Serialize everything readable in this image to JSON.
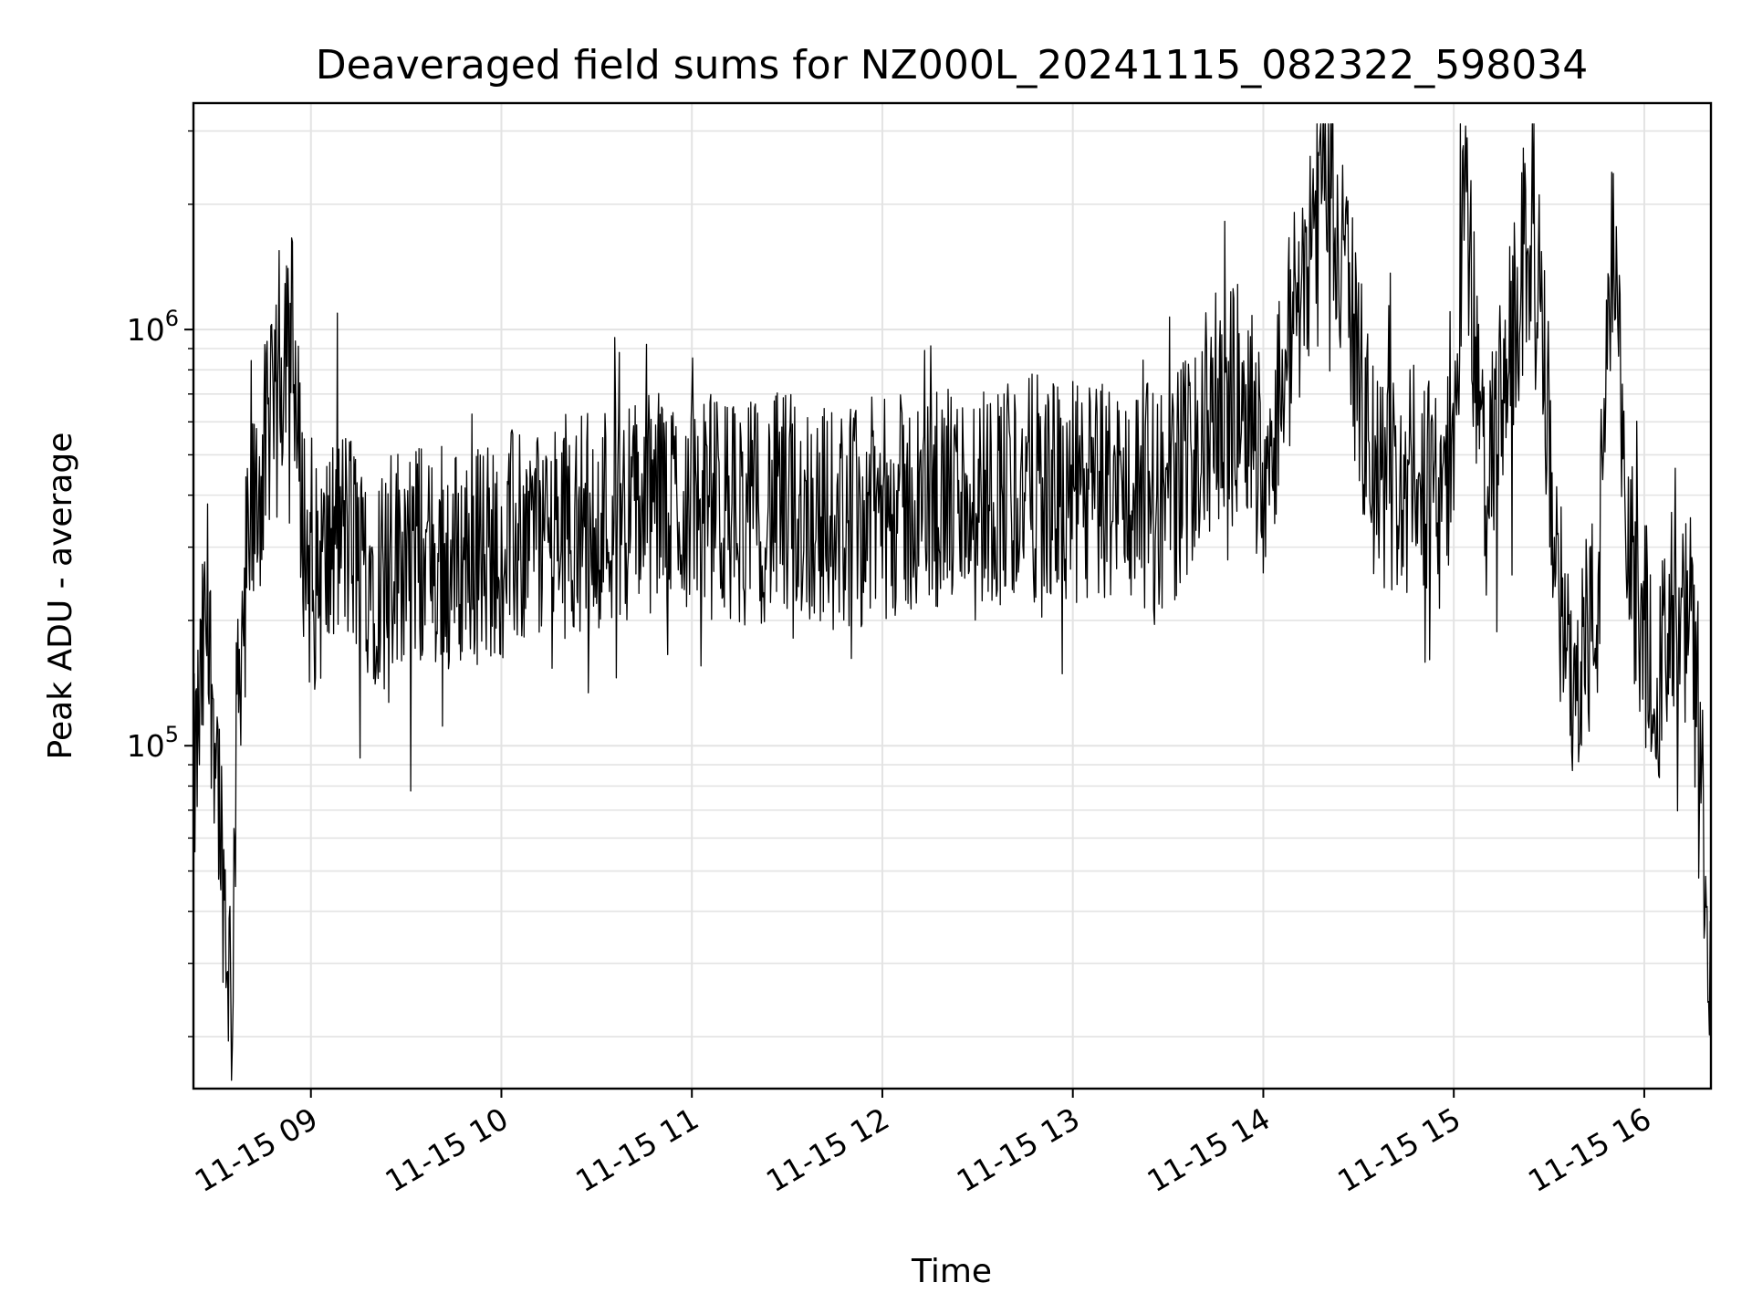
{
  "chart_data": {
    "type": "line",
    "title": "Deaveraged field sums for NZ000L_20241115_082322_598034",
    "xlabel": "Time",
    "ylabel": "Peak ADU - average",
    "yscale": "log",
    "ylim": [
      15000,
      3500000
    ],
    "xlim": [
      "2024-11-15 08:23",
      "2024-11-15 16:21"
    ],
    "grid": true,
    "line_color": "#000000",
    "grid_color": "#e3e3e3",
    "x_ticks": [
      "11-15 09",
      "11-15 10",
      "11-15 11",
      "11-15 12",
      "11-15 13",
      "11-15 14",
      "11-15 15",
      "11-15 16"
    ],
    "y_ticks": [
      {
        "base": "10",
        "exp": "5"
      },
      {
        "base": "10",
        "exp": "6"
      }
    ],
    "series": [
      {
        "values": [
          [
            "2024-11-15 08:23",
            75000
          ],
          [
            "2024-11-15 08:27",
            200000
          ],
          [
            "2024-11-15 08:30",
            110000
          ],
          [
            "2024-11-15 08:33",
            40000
          ],
          [
            "2024-11-15 08:35",
            25000
          ],
          [
            "2024-11-15 08:37",
            150000
          ],
          [
            "2024-11-15 08:40",
            280000
          ],
          [
            "2024-11-15 08:45",
            480000
          ],
          [
            "2024-11-15 08:50",
            650000
          ],
          [
            "2024-11-15 08:53",
            1300000
          ],
          [
            "2024-11-15 08:57",
            380000
          ],
          [
            "2024-11-15 09:00",
            240000
          ],
          [
            "2024-11-15 09:10",
            330000
          ],
          [
            "2024-11-15 09:20",
            260000
          ],
          [
            "2024-11-15 09:30",
            300000
          ],
          [
            "2024-11-15 09:40",
            270000
          ],
          [
            "2024-11-15 09:50",
            290000
          ],
          [
            "2024-11-15 10:00",
            300000
          ],
          [
            "2024-11-15 10:15",
            330000
          ],
          [
            "2024-11-15 10:30",
            360000
          ],
          [
            "2024-11-15 10:45",
            380000
          ],
          [
            "2024-11-15 11:00",
            390000
          ],
          [
            "2024-11-15 11:15",
            360000
          ],
          [
            "2024-11-15 11:30",
            380000
          ],
          [
            "2024-11-15 11:45",
            350000
          ],
          [
            "2024-11-15 12:00",
            370000
          ],
          [
            "2024-11-15 12:15",
            380000
          ],
          [
            "2024-11-15 12:30",
            400000
          ],
          [
            "2024-11-15 12:45",
            420000
          ],
          [
            "2024-11-15 13:00",
            400000
          ],
          [
            "2024-11-15 13:15",
            410000
          ],
          [
            "2024-11-15 13:30",
            390000
          ],
          [
            "2024-11-15 13:45",
            650000
          ],
          [
            "2024-11-15 13:55",
            700000
          ],
          [
            "2024-11-15 14:00",
            450000
          ],
          [
            "2024-11-15 14:20",
            2700000
          ],
          [
            "2024-11-15 14:35",
            420000
          ],
          [
            "2024-11-15 14:50",
            440000
          ],
          [
            "2024-11-15 15:00",
            420000
          ],
          [
            "2024-11-15 15:03",
            2400000
          ],
          [
            "2024-11-15 15:10",
            380000
          ],
          [
            "2024-11-15 15:25",
            1900000
          ],
          [
            "2024-11-15 15:35",
            150000
          ],
          [
            "2024-11-15 15:45",
            200000
          ],
          [
            "2024-11-15 15:50",
            1500000
          ],
          [
            "2024-11-15 15:55",
            280000
          ],
          [
            "2024-11-15 16:05",
            150000
          ],
          [
            "2024-11-15 16:15",
            200000
          ],
          [
            "2024-11-15 16:21",
            20000
          ]
        ]
      }
    ]
  }
}
